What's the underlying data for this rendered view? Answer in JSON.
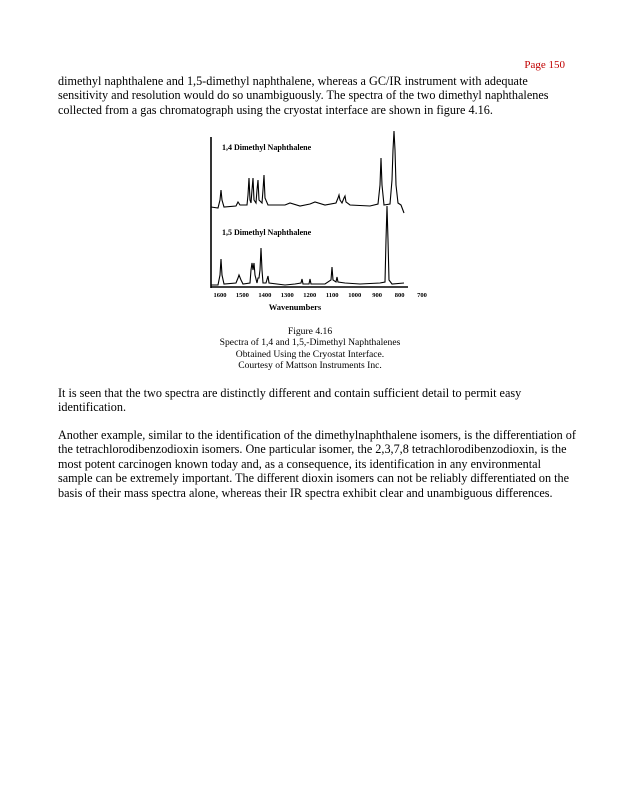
{
  "page_number": "Page 150",
  "paragraphs": [
    "dimethyl naphthalene and 1,5-dimethyl naphthalene, whereas a GC/IR instrument with adequate sensitivity and resolution would do so unambiguously. The spectra of the two dimethyl naphthalenes collected from a gas chromatograph using the cryostat interface are shown in figure 4.16.",
    "It is seen that the two spectra are distinctly different and contain sufficient detail to permit easy identification.",
    "Another example, similar to the identification of the dimethylnaphthalene isomers, is the differentiation of the tetrachlorodibenzodioxin isomers. One particular isomer, the 2,3,7,8 tetrachlorodibenzodioxin, is the most potent carcinogen known today and, as a consequence, its identification in any environmental sample can be extremely important. The different dioxin isomers can not be reliably differentiated on the basis of their mass spectra alone, whereas their IR spectra exhibit clear and unambiguous differences."
  ],
  "figure": {
    "top_label": "1,4  Dimethyl  Naphthalene",
    "bottom_label": "1,5  Dimethyl  Naphthalene",
    "x_ticks": [
      "1600",
      "1500",
      "1400",
      "1300",
      "1200",
      "1100",
      "1000",
      "900",
      "800",
      "700"
    ],
    "x_label": "Wavenumbers",
    "caption": [
      "Figure  4.16",
      "Spectra  of 1,4  and  1,5,-Dimethyl Naphthalenes",
      "Obtained Using the Cryostat Interface.",
      "Courtesy of Mattson Instruments Inc."
    ]
  }
}
